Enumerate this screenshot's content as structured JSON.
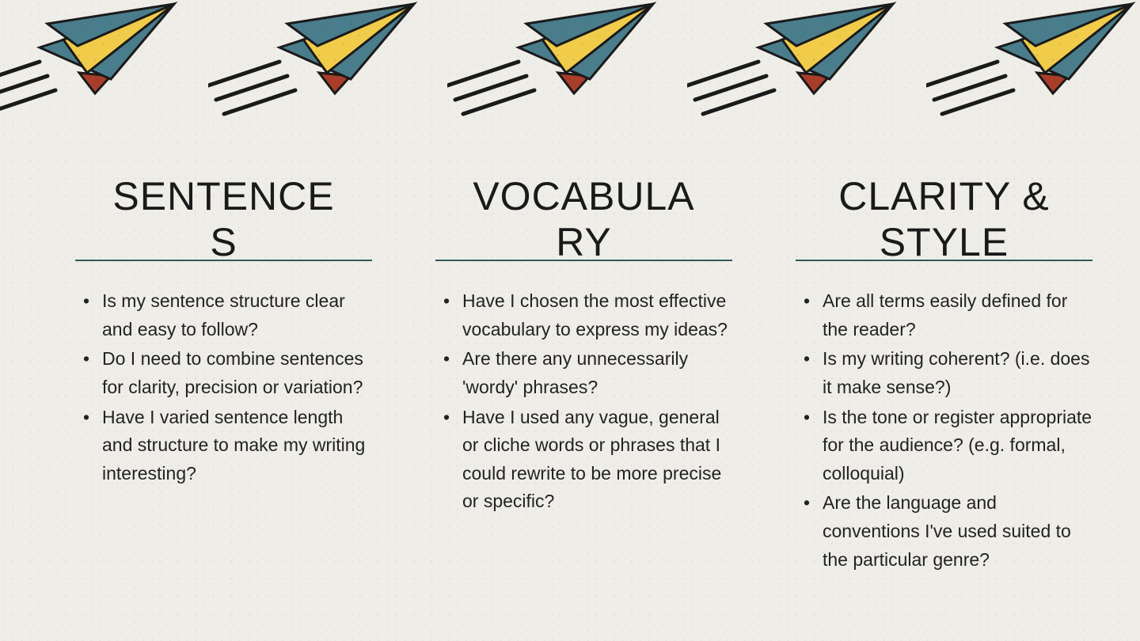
{
  "styling": {
    "background_color": "#efede8",
    "title_color": "#1a1a1a",
    "body_color": "#222222",
    "rule_color": "#2e5a5a",
    "plane": {
      "body_fill": "#4a7d8c",
      "body_stroke": "#1a1a1a",
      "wing_fill": "#f0cc4a",
      "tail_fill": "#a83e2a",
      "trail_color": "#1a1a1a"
    },
    "title_fontsize": 50,
    "body_fontsize": 23
  },
  "columns": [
    {
      "title": "SENTENCE\nS",
      "bullets": [
        "Is my sentence structure clear and easy to follow?",
        "Do I need to combine sentences for clarity, precision or variation?",
        "Have I varied sentence length and structure to make my writing interesting?"
      ]
    },
    {
      "title": "VOCABULA\nRY",
      "bullets": [
        "Have I chosen the most effective vocabulary to express my ideas?",
        "Are there any unnecessarily 'wordy' phrases?",
        "Have I used any vague, general or cliche words or phrases that I could rewrite to be more precise or specific?"
      ]
    },
    {
      "title": "CLARITY &\nSTYLE",
      "bullets": [
        "Are all terms easily defined for the reader?",
        "Is my writing coherent? (i.e. does it make sense?)",
        "Is the tone or register appropriate for the audience? (e.g. formal, colloquial)",
        "Are the language and conventions I've used suited to the particular genre?"
      ]
    }
  ]
}
